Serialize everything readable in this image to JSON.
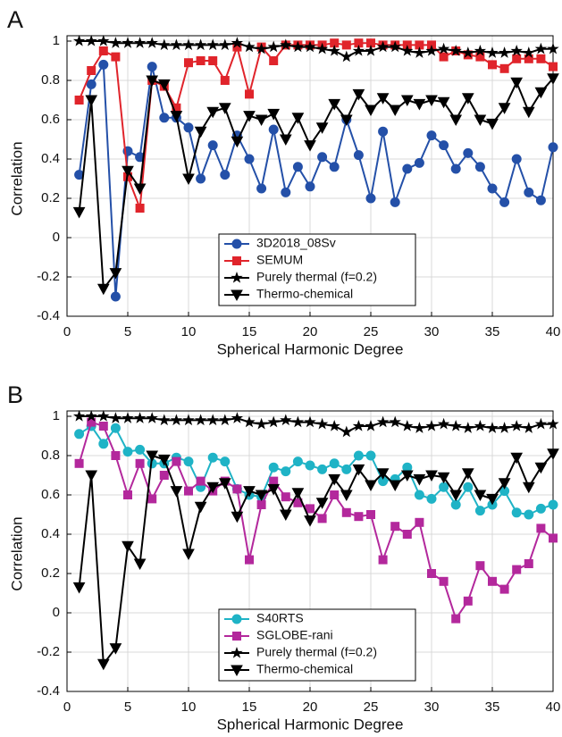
{
  "chart_data": [
    {
      "type": "line",
      "panel_label": "A",
      "xlabel": "Spherical Harmonic Degree",
      "ylabel": "Correlation",
      "xlim": [
        0,
        40
      ],
      "xticks": [
        0,
        5,
        10,
        15,
        20,
        25,
        30,
        35,
        40
      ],
      "ylim": [
        -0.4,
        1
      ],
      "yticks": [
        -0.4,
        -0.2,
        0,
        0.2,
        0.4,
        0.6,
        0.8,
        1
      ],
      "grid": true,
      "legend": "lower center",
      "x": [
        1,
        2,
        3,
        4,
        5,
        6,
        7,
        8,
        9,
        10,
        11,
        12,
        13,
        14,
        15,
        16,
        17,
        18,
        19,
        20,
        21,
        22,
        23,
        24,
        25,
        26,
        27,
        28,
        29,
        30,
        31,
        32,
        33,
        34,
        35,
        36,
        37,
        38,
        39,
        40
      ],
      "series": [
        {
          "name": "3D2018_08Sv",
          "color": "#2450a8",
          "marker": "circle",
          "values": [
            0.32,
            0.78,
            0.88,
            -0.3,
            0.44,
            0.41,
            0.87,
            0.61,
            0.61,
            0.56,
            0.3,
            0.47,
            0.32,
            0.52,
            0.4,
            0.25,
            0.55,
            0.23,
            0.36,
            0.26,
            0.41,
            0.36,
            0.6,
            0.42,
            0.2,
            0.54,
            0.18,
            0.35,
            0.38,
            0.52,
            0.47,
            0.35,
            0.43,
            0.36,
            0.25,
            0.18,
            0.4,
            0.23,
            0.19,
            0.46
          ]
        },
        {
          "name": "SEMUM",
          "color": "#e0242b",
          "marker": "square",
          "values": [
            0.7,
            0.85,
            0.95,
            0.92,
            0.31,
            0.15,
            0.8,
            0.77,
            0.66,
            0.89,
            0.9,
            0.9,
            0.8,
            0.97,
            0.73,
            0.97,
            0.9,
            0.98,
            0.98,
            0.98,
            0.98,
            0.99,
            0.98,
            0.99,
            0.99,
            0.98,
            0.98,
            0.98,
            0.98,
            0.98,
            0.92,
            0.95,
            0.93,
            0.92,
            0.88,
            0.86,
            0.91,
            0.91,
            0.91,
            0.87
          ]
        },
        {
          "name": "Purely thermal (f=0.2)",
          "color": "#000000",
          "marker": "star",
          "values": [
            1.0,
            1.0,
            1.0,
            0.99,
            0.99,
            0.99,
            0.99,
            0.98,
            0.98,
            0.98,
            0.98,
            0.98,
            0.98,
            0.99,
            0.97,
            0.96,
            0.97,
            0.98,
            0.97,
            0.97,
            0.96,
            0.95,
            0.92,
            0.95,
            0.95,
            0.97,
            0.97,
            0.95,
            0.94,
            0.95,
            0.96,
            0.95,
            0.94,
            0.95,
            0.94,
            0.94,
            0.95,
            0.94,
            0.96,
            0.96
          ]
        },
        {
          "name": "Thermo-chemical",
          "color": "#000000",
          "marker": "triangle",
          "values": [
            0.13,
            0.7,
            -0.26,
            -0.18,
            0.34,
            0.25,
            0.8,
            0.78,
            0.62,
            0.3,
            0.54,
            0.64,
            0.66,
            0.49,
            0.62,
            0.6,
            0.63,
            0.5,
            0.61,
            0.47,
            0.56,
            0.68,
            0.6,
            0.73,
            0.65,
            0.71,
            0.65,
            0.7,
            0.68,
            0.7,
            0.69,
            0.6,
            0.71,
            0.6,
            0.58,
            0.66,
            0.79,
            0.64,
            0.74,
            0.81
          ]
        }
      ]
    },
    {
      "type": "line",
      "panel_label": "B",
      "xlabel": "Spherical Harmonic Degree",
      "ylabel": "Correlation",
      "xlim": [
        0,
        40
      ],
      "xticks": [
        0,
        5,
        10,
        15,
        20,
        25,
        30,
        35,
        40
      ],
      "ylim": [
        -0.4,
        1
      ],
      "yticks": [
        -0.4,
        -0.2,
        0,
        0.2,
        0.4,
        0.6,
        0.8,
        1
      ],
      "grid": true,
      "legend": "lower center",
      "x": [
        1,
        2,
        3,
        4,
        5,
        6,
        7,
        8,
        9,
        10,
        11,
        12,
        13,
        14,
        15,
        16,
        17,
        18,
        19,
        20,
        21,
        22,
        23,
        24,
        25,
        26,
        27,
        28,
        29,
        30,
        31,
        32,
        33,
        34,
        35,
        36,
        37,
        38,
        39,
        40
      ],
      "series": [
        {
          "name": "S40RTS",
          "color": "#1fb3c6",
          "marker": "circle",
          "values": [
            0.91,
            0.95,
            0.86,
            0.94,
            0.82,
            0.83,
            0.76,
            0.76,
            0.79,
            0.77,
            0.64,
            0.79,
            0.77,
            0.63,
            0.6,
            0.59,
            0.74,
            0.72,
            0.77,
            0.75,
            0.73,
            0.76,
            0.73,
            0.8,
            0.8,
            0.67,
            0.68,
            0.74,
            0.6,
            0.58,
            0.64,
            0.55,
            0.64,
            0.52,
            0.55,
            0.62,
            0.51,
            0.5,
            0.53,
            0.55
          ]
        },
        {
          "name": "SGLOBE-rani",
          "color": "#b3289c",
          "marker": "square",
          "values": [
            0.76,
            0.97,
            0.95,
            0.8,
            0.6,
            0.76,
            0.58,
            0.7,
            0.77,
            0.62,
            0.67,
            0.62,
            0.67,
            0.63,
            0.27,
            0.55,
            0.67,
            0.59,
            0.56,
            0.53,
            0.48,
            0.6,
            0.51,
            0.49,
            0.5,
            0.27,
            0.44,
            0.4,
            0.46,
            0.2,
            0.16,
            -0.03,
            0.06,
            0.24,
            0.16,
            0.12,
            0.22,
            0.25,
            0.43,
            0.38
          ]
        },
        {
          "name": "Purely thermal (f=0.2)",
          "color": "#000000",
          "marker": "star",
          "values": [
            1.0,
            1.0,
            1.0,
            0.99,
            0.99,
            0.99,
            0.99,
            0.98,
            0.98,
            0.98,
            0.98,
            0.98,
            0.98,
            0.99,
            0.97,
            0.96,
            0.97,
            0.98,
            0.97,
            0.97,
            0.96,
            0.95,
            0.92,
            0.95,
            0.95,
            0.97,
            0.97,
            0.95,
            0.94,
            0.95,
            0.96,
            0.95,
            0.94,
            0.95,
            0.94,
            0.94,
            0.95,
            0.94,
            0.96,
            0.96
          ]
        },
        {
          "name": "Thermo-chemical",
          "color": "#000000",
          "marker": "triangle",
          "values": [
            0.13,
            0.7,
            -0.26,
            -0.18,
            0.34,
            0.25,
            0.8,
            0.78,
            0.62,
            0.3,
            0.54,
            0.64,
            0.66,
            0.49,
            0.62,
            0.6,
            0.63,
            0.5,
            0.61,
            0.47,
            0.56,
            0.68,
            0.6,
            0.73,
            0.65,
            0.71,
            0.65,
            0.7,
            0.68,
            0.7,
            0.69,
            0.6,
            0.71,
            0.6,
            0.58,
            0.66,
            0.79,
            0.64,
            0.74,
            0.81
          ]
        }
      ]
    }
  ]
}
